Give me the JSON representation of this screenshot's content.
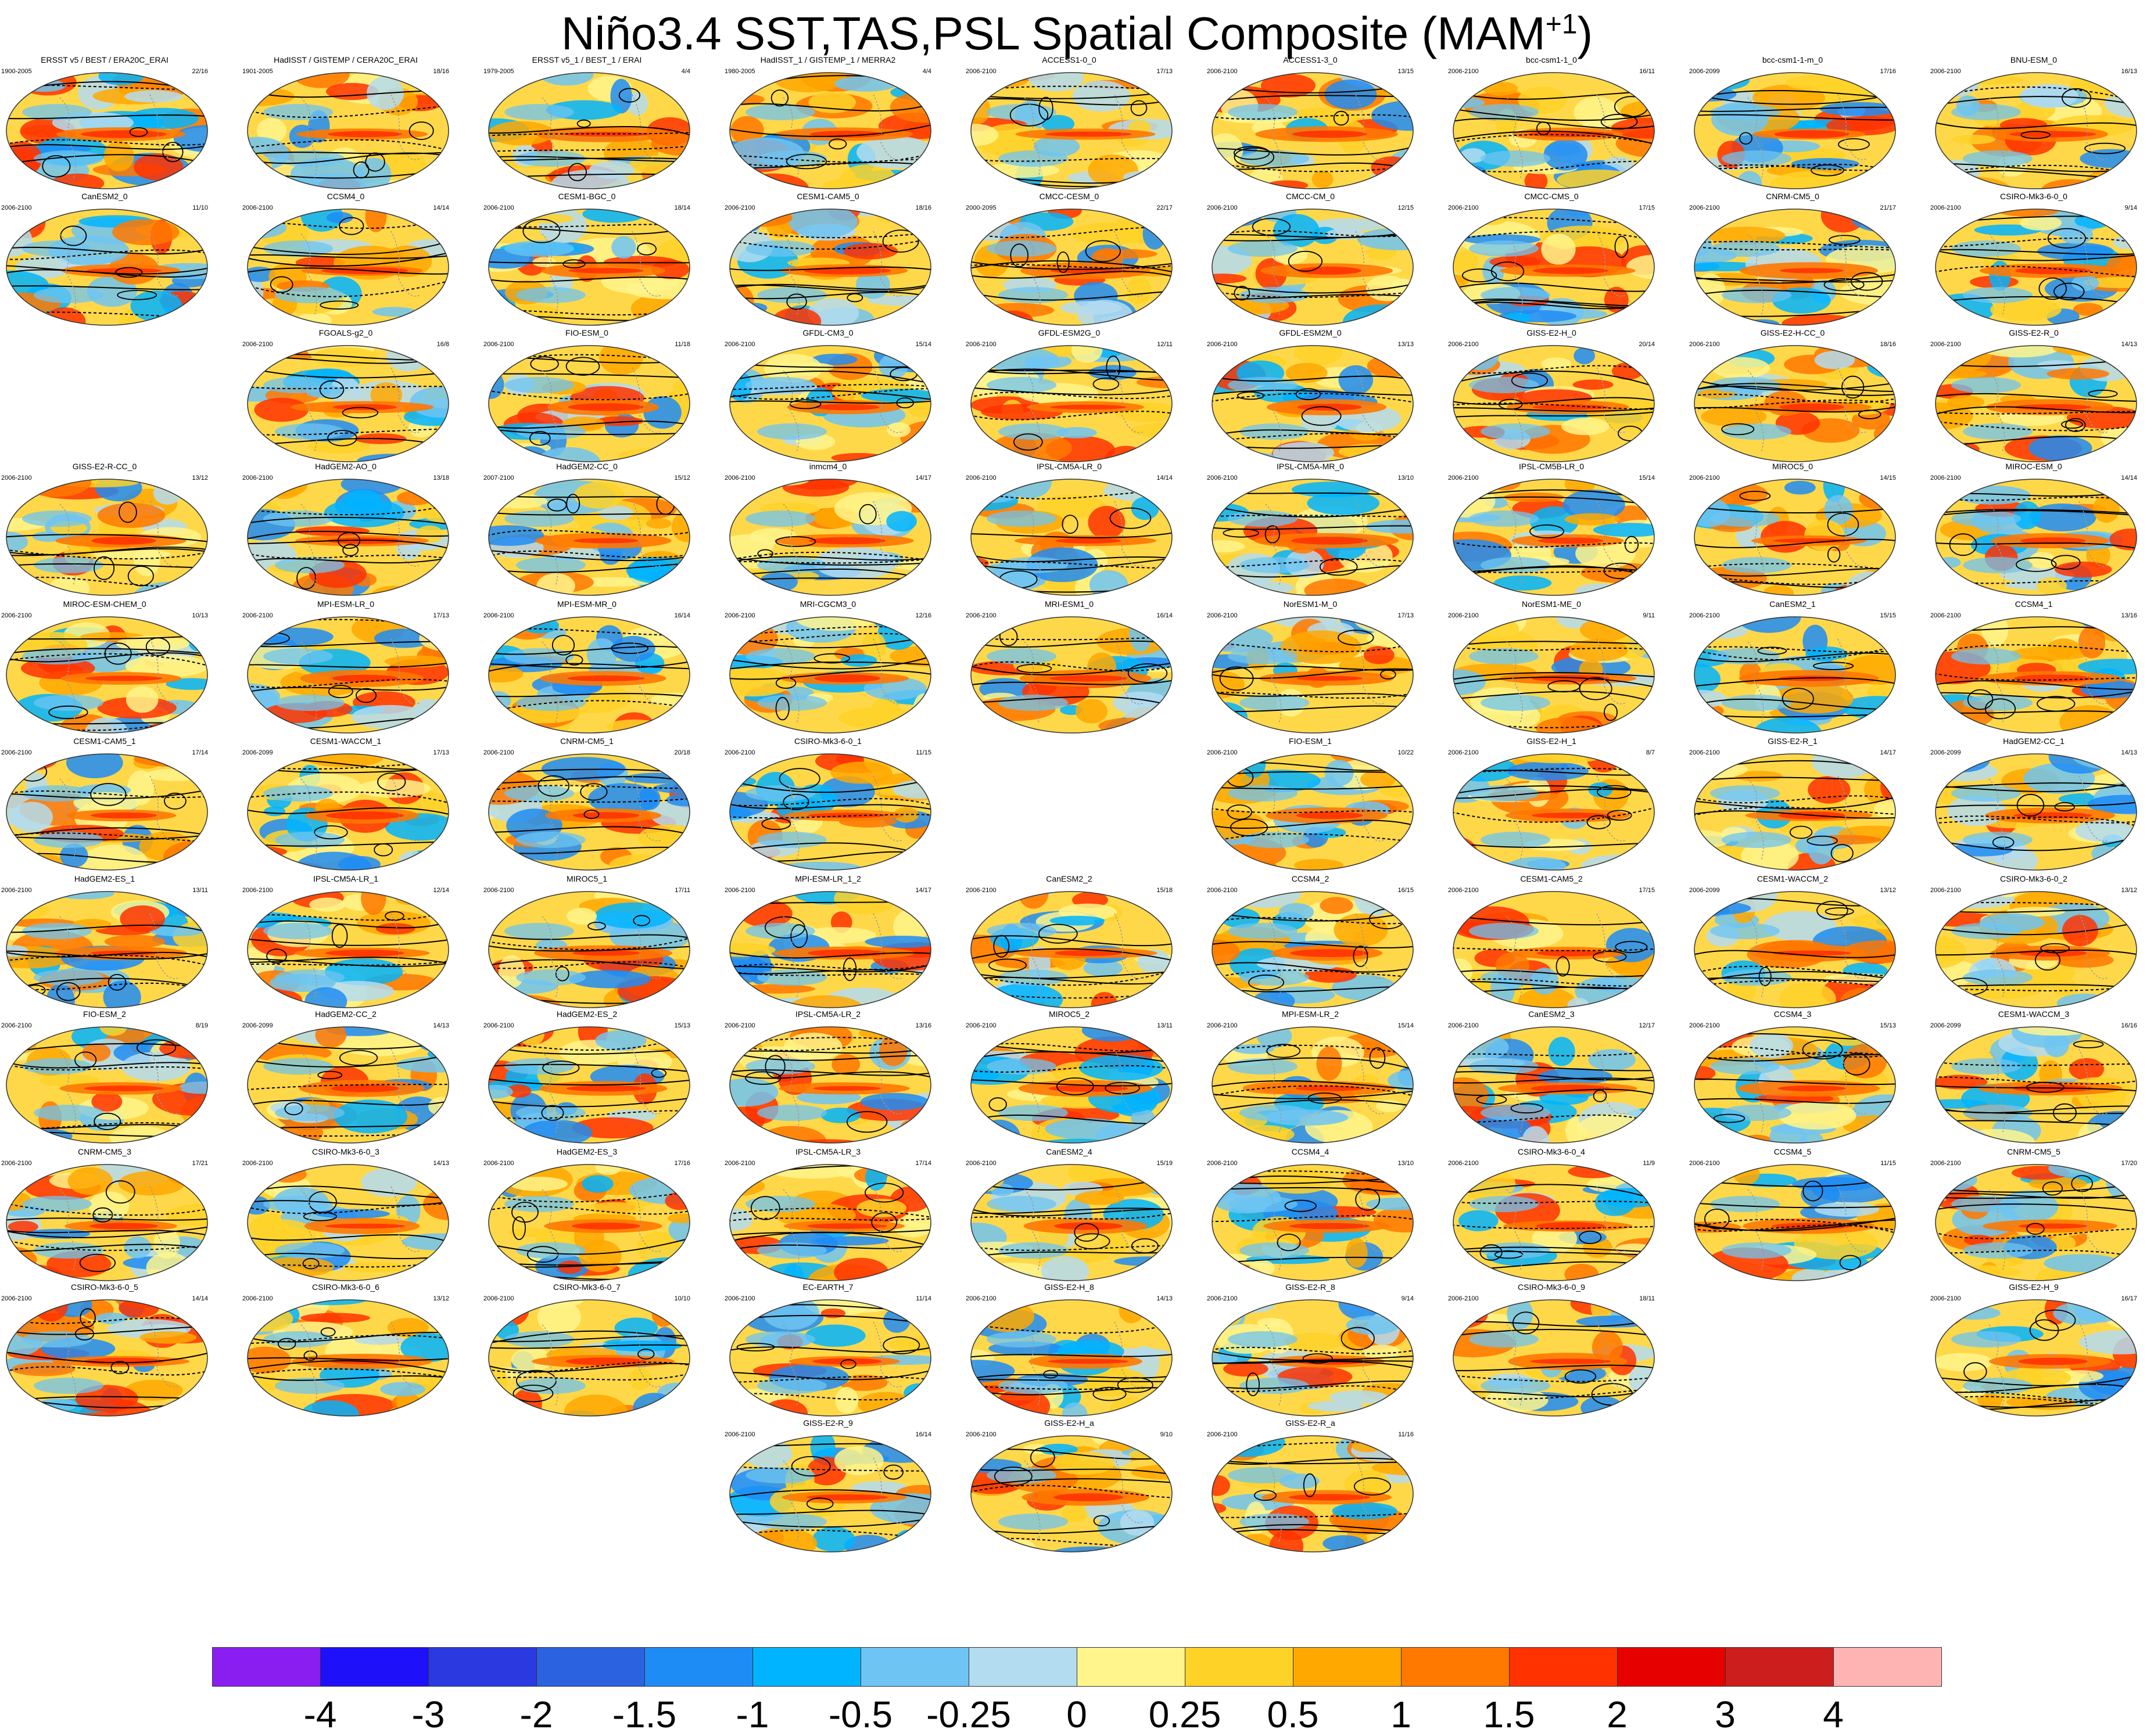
{
  "title": {
    "main": "Niño3.4 SST,TAS,PSL Spatial Composite (MAM",
    "superscript": "+1",
    "close": ")"
  },
  "panels": [
    {
      "name": "ERSST v5 / BEST / ERA20C_ERAI",
      "years": "1900-2005",
      "count": "22/16",
      "row": 0,
      "col": 0
    },
    {
      "name": "HadISST / GISTEMP / CERA20C_ERAI",
      "years": "1901-2005",
      "count": "18/16",
      "row": 0,
      "col": 1
    },
    {
      "name": "ERSST v5_1 / BEST_1 / ERAI",
      "years": "1979-2005",
      "count": "4/4",
      "row": 0,
      "col": 2
    },
    {
      "name": "HadISST_1 / GISTEMP_1 / MERRA2",
      "years": "1980-2005",
      "count": "4/4",
      "row": 0,
      "col": 3
    },
    {
      "name": "ACCESS1-0_0",
      "years": "2006-2100",
      "count": "17/13",
      "row": 0,
      "col": 4
    },
    {
      "name": "ACCESS1-3_0",
      "years": "2006-2100",
      "count": "13/15",
      "row": 0,
      "col": 5
    },
    {
      "name": "bcc-csm1-1_0",
      "years": "2006-2100",
      "count": "16/11",
      "row": 0,
      "col": 6
    },
    {
      "name": "bcc-csm1-1-m_0",
      "years": "2006-2099",
      "count": "17/16",
      "row": 0,
      "col": 7
    },
    {
      "name": "BNU-ESM_0",
      "years": "2006-2100",
      "count": "16/13",
      "row": 0,
      "col": 8
    },
    {
      "name": "CanESM2_0",
      "years": "2006-2100",
      "count": "11/10",
      "row": 1,
      "col": 0
    },
    {
      "name": "CCSM4_0",
      "years": "2006-2100",
      "count": "14/14",
      "row": 1,
      "col": 1
    },
    {
      "name": "CESM1-BGC_0",
      "years": "2006-2100",
      "count": "18/14",
      "row": 1,
      "col": 2
    },
    {
      "name": "CESM1-CAM5_0",
      "years": "2006-2100",
      "count": "18/16",
      "row": 1,
      "col": 3
    },
    {
      "name": "CMCC-CESM_0",
      "years": "2000-2095",
      "count": "22/17",
      "row": 1,
      "col": 4
    },
    {
      "name": "CMCC-CM_0",
      "years": "2006-2100",
      "count": "12/15",
      "row": 1,
      "col": 5
    },
    {
      "name": "CMCC-CMS_0",
      "years": "2006-2100",
      "count": "17/15",
      "row": 1,
      "col": 6
    },
    {
      "name": "CNRM-CM5_0",
      "years": "2006-2100",
      "count": "21/17",
      "row": 1,
      "col": 7
    },
    {
      "name": "CSIRO-Mk3-6-0_0",
      "years": "2006-2100",
      "count": "9/14",
      "row": 1,
      "col": 8
    },
    {
      "name": "FGOALS-g2_0",
      "years": "2006-2100",
      "count": "16/8",
      "row": 2,
      "col": 1
    },
    {
      "name": "FIO-ESM_0",
      "years": "2006-2100",
      "count": "11/18",
      "row": 2,
      "col": 2
    },
    {
      "name": "GFDL-CM3_0",
      "years": "2006-2100",
      "count": "15/14",
      "row": 2,
      "col": 3
    },
    {
      "name": "GFDL-ESM2G_0",
      "years": "2006-2100",
      "count": "12/11",
      "row": 2,
      "col": 4
    },
    {
      "name": "GFDL-ESM2M_0",
      "years": "2006-2100",
      "count": "13/13",
      "row": 2,
      "col": 5
    },
    {
      "name": "GISS-E2-H_0",
      "years": "2006-2100",
      "count": "20/14",
      "row": 2,
      "col": 6
    },
    {
      "name": "GISS-E2-H-CC_0",
      "years": "2006-2100",
      "count": "18/16",
      "row": 2,
      "col": 7
    },
    {
      "name": "GISS-E2-R_0",
      "years": "2006-2100",
      "count": "14/13",
      "row": 2,
      "col": 8
    },
    {
      "name": "GISS-E2-R-CC_0",
      "years": "2006-2100",
      "count": "13/12",
      "row": 3,
      "col": 0
    },
    {
      "name": "HadGEM2-AO_0",
      "years": "2006-2100",
      "count": "13/18",
      "row": 3,
      "col": 1
    },
    {
      "name": "HadGEM2-CC_0",
      "years": "2007-2100",
      "count": "15/12",
      "row": 3,
      "col": 2
    },
    {
      "name": "inmcm4_0",
      "years": "2006-2100",
      "count": "14/17",
      "row": 3,
      "col": 3
    },
    {
      "name": "IPSL-CM5A-LR_0",
      "years": "2006-2100",
      "count": "14/14",
      "row": 3,
      "col": 4
    },
    {
      "name": "IPSL-CM5A-MR_0",
      "years": "2006-2100",
      "count": "13/10",
      "row": 3,
      "col": 5
    },
    {
      "name": "IPSL-CM5B-LR_0",
      "years": "2006-2100",
      "count": "15/14",
      "row": 3,
      "col": 6
    },
    {
      "name": "MIROC5_0",
      "years": "2006-2100",
      "count": "14/15",
      "row": 3,
      "col": 7
    },
    {
      "name": "MIROC-ESM_0",
      "years": "2006-2100",
      "count": "14/14",
      "row": 3,
      "col": 8
    },
    {
      "name": "MIROC-ESM-CHEM_0",
      "years": "2006-2100",
      "count": "10/13",
      "row": 4,
      "col": 0
    },
    {
      "name": "MPI-ESM-LR_0",
      "years": "2006-2100",
      "count": "17/13",
      "row": 4,
      "col": 1
    },
    {
      "name": "MPI-ESM-MR_0",
      "years": "2006-2100",
      "count": "16/14",
      "row": 4,
      "col": 2
    },
    {
      "name": "MRI-CGCM3_0",
      "years": "2006-2100",
      "count": "12/16",
      "row": 4,
      "col": 3
    },
    {
      "name": "MRI-ESM1_0",
      "years": "2006-2100",
      "count": "16/14",
      "row": 4,
      "col": 4
    },
    {
      "name": "NorESM1-M_0",
      "years": "2006-2100",
      "count": "17/13",
      "row": 4,
      "col": 5
    },
    {
      "name": "NorESM1-ME_0",
      "years": "2006-2100",
      "count": "9/11",
      "row": 4,
      "col": 6
    },
    {
      "name": "CanESM2_1",
      "years": "2006-2100",
      "count": "15/15",
      "row": 4,
      "col": 7
    },
    {
      "name": "CCSM4_1",
      "years": "2006-2100",
      "count": "13/16",
      "row": 4,
      "col": 8
    },
    {
      "name": "CESM1-CAM5_1",
      "years": "2006-2100",
      "count": "17/14",
      "row": 5,
      "col": 0
    },
    {
      "name": "CESM1-WACCM_1",
      "years": "2006-2099",
      "count": "17/13",
      "row": 5,
      "col": 1
    },
    {
      "name": "CNRM-CM5_1",
      "years": "2006-2100",
      "count": "20/18",
      "row": 5,
      "col": 2
    },
    {
      "name": "CSIRO-Mk3-6-0_1",
      "years": "2006-2100",
      "count": "11/15",
      "row": 5,
      "col": 3
    },
    {
      "name": "FIO-ESM_1",
      "years": "2006-2100",
      "count": "10/22",
      "row": 5,
      "col": 5
    },
    {
      "name": "GISS-E2-H_1",
      "years": "2006-2100",
      "count": "8/7",
      "row": 5,
      "col": 6
    },
    {
      "name": "GISS-E2-R_1",
      "years": "2006-2100",
      "count": "14/17",
      "row": 5,
      "col": 7
    },
    {
      "name": "HadGEM2-CC_1",
      "years": "2006-2099",
      "count": "14/13",
      "row": 5,
      "col": 8
    },
    {
      "name": "HadGEM2-ES_1",
      "years": "2006-2100",
      "count": "13/11",
      "row": 6,
      "col": 0
    },
    {
      "name": "IPSL-CM5A-LR_1",
      "years": "2006-2100",
      "count": "12/14",
      "row": 6,
      "col": 1
    },
    {
      "name": "MIROC5_1",
      "years": "2006-2100",
      "count": "17/11",
      "row": 6,
      "col": 2
    },
    {
      "name": "MPI-ESM-LR_1_2",
      "years": "2006-2100",
      "count": "14/17",
      "row": 6,
      "col": 3
    },
    {
      "name": "CanESM2_2",
      "years": "2006-2100",
      "count": "15/18",
      "row": 6,
      "col": 4
    },
    {
      "name": "CCSM4_2",
      "years": "2006-2100",
      "count": "16/15",
      "row": 6,
      "col": 5
    },
    {
      "name": "CESM1-CAM5_2",
      "years": "2006-2100",
      "count": "17/15",
      "row": 6,
      "col": 6
    },
    {
      "name": "CESM1-WACCM_2",
      "years": "2006-2099",
      "count": "13/12",
      "row": 6,
      "col": 7
    },
    {
      "name": "CSIRO-Mk3-6-0_2",
      "years": "2006-2100",
      "count": "13/12",
      "row": 6,
      "col": 8
    },
    {
      "name": "FIO-ESM_2",
      "years": "2006-2100",
      "count": "8/19",
      "row": 7,
      "col": 0
    },
    {
      "name": "HadGEM2-CC_2",
      "years": "2006-2099",
      "count": "14/13",
      "row": 7,
      "col": 1
    },
    {
      "name": "HadGEM2-ES_2",
      "years": "2006-2100",
      "count": "15/13",
      "row": 7,
      "col": 2
    },
    {
      "name": "IPSL-CM5A-LR_2",
      "years": "2006-2100",
      "count": "13/16",
      "row": 7,
      "col": 3
    },
    {
      "name": "MIROC5_2",
      "years": "2006-2100",
      "count": "13/11",
      "row": 7,
      "col": 4
    },
    {
      "name": "MPI-ESM-LR_2",
      "years": "2006-2100",
      "count": "15/14",
      "row": 7,
      "col": 5
    },
    {
      "name": "CanESM2_3",
      "years": "2006-2100",
      "count": "12/17",
      "row": 7,
      "col": 6
    },
    {
      "name": "CCSM4_3",
      "years": "2006-2100",
      "count": "15/13",
      "row": 7,
      "col": 7
    },
    {
      "name": "CESM1-WACCM_3",
      "years": "2006-2099",
      "count": "16/16",
      "row": 7,
      "col": 8
    },
    {
      "name": "CNRM-CM5_3",
      "years": "2006-2100",
      "count": "17/21",
      "row": 8,
      "col": 0
    },
    {
      "name": "CSIRO-Mk3-6-0_3",
      "years": "2006-2100",
      "count": "14/13",
      "row": 8,
      "col": 1
    },
    {
      "name": "HadGEM2-ES_3",
      "years": "2006-2100",
      "count": "17/16",
      "row": 8,
      "col": 2
    },
    {
      "name": "IPSL-CM5A-LR_3",
      "years": "2006-2100",
      "count": "17/14",
      "row": 8,
      "col": 3
    },
    {
      "name": "CanESM2_4",
      "years": "2006-2100",
      "count": "15/19",
      "row": 8,
      "col": 4
    },
    {
      "name": "CCSM4_4",
      "years": "2006-2100",
      "count": "13/10",
      "row": 8,
      "col": 5
    },
    {
      "name": "CSIRO-Mk3-6-0_4",
      "years": "2006-2100",
      "count": "11/9",
      "row": 8,
      "col": 6
    },
    {
      "name": "CCSM4_5",
      "years": "2006-2100",
      "count": "11/15",
      "row": 8,
      "col": 7
    },
    {
      "name": "CNRM-CM5_5",
      "years": "2006-2100",
      "count": "17/20",
      "row": 8,
      "col": 8
    },
    {
      "name": "CSIRO-Mk3-6-0_5",
      "years": "2006-2100",
      "count": "14/14",
      "row": 9,
      "col": 0
    },
    {
      "name": "CSIRO-Mk3-6-0_6",
      "years": "2006-2100",
      "count": "13/12",
      "row": 9,
      "col": 1
    },
    {
      "name": "CSIRO-Mk3-6-0_7",
      "years": "2006-2100",
      "count": "10/10",
      "row": 9,
      "col": 2
    },
    {
      "name": "EC-EARTH_7",
      "years": "2006-2100",
      "count": "11/14",
      "row": 9,
      "col": 3
    },
    {
      "name": "GISS-E2-H_8",
      "years": "2006-2100",
      "count": "14/13",
      "row": 9,
      "col": 4
    },
    {
      "name": "GISS-E2-R_8",
      "years": "2006-2100",
      "count": "9/14",
      "row": 9,
      "col": 5
    },
    {
      "name": "CSIRO-Mk3-6-0_9",
      "years": "2006-2100",
      "count": "18/11",
      "row": 9,
      "col": 6
    },
    {
      "name": "GISS-E2-H_9",
      "years": "2006-2100",
      "count": "16/17",
      "row": 9,
      "col": 8
    },
    {
      "name": "GISS-E2-R_9",
      "years": "2006-2100",
      "count": "16/14",
      "row": 10,
      "col": 3
    },
    {
      "name": "GISS-E2-H_a",
      "years": "2006-2100",
      "count": "9/10",
      "row": 10,
      "col": 4
    },
    {
      "name": "GISS-E2-R_a",
      "years": "2006-2100",
      "count": "11/16",
      "row": 10,
      "col": 5
    }
  ],
  "colorbar": {
    "colors": [
      "#8a1ef0",
      "#1e10f8",
      "#2a3ae0",
      "#2a62e0",
      "#1e8cf5",
      "#00b4ff",
      "#6ec4f2",
      "#b4dcf0",
      "#fff58c",
      "#ffd228",
      "#ffa800",
      "#ff7800",
      "#ff3200",
      "#e60000",
      "#cd1e1e",
      "#ffb4b4"
    ],
    "labels": [
      "-4",
      "-3",
      "-2",
      "-1.5",
      "-1",
      "-0.5",
      "-0.25",
      "0",
      "0.25",
      "0.5",
      "1",
      "1.5",
      "2",
      "3",
      "4"
    ]
  }
}
